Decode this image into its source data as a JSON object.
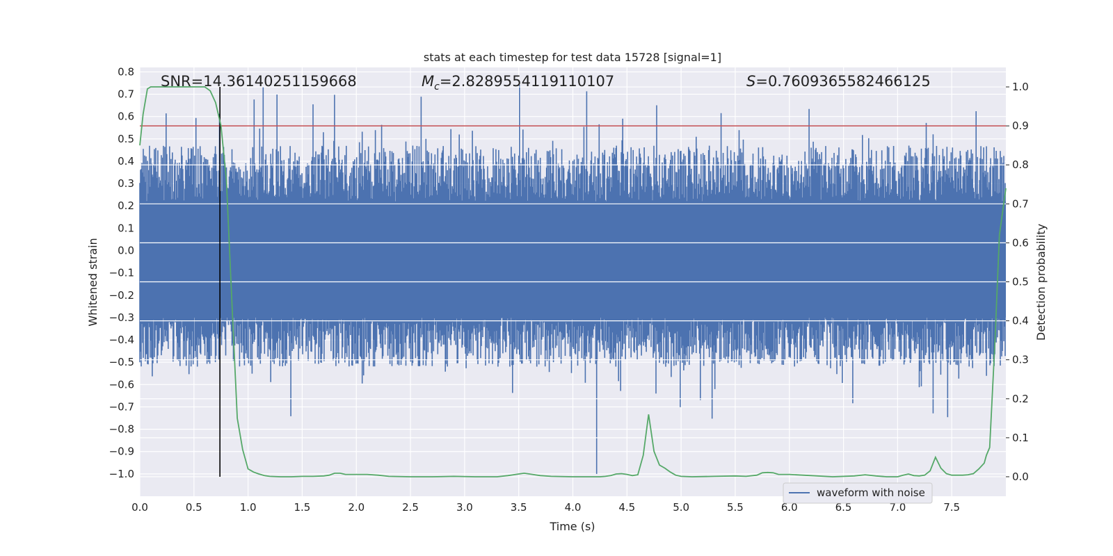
{
  "chart_data": {
    "type": "line",
    "title": "stats at each timestep for test data 15728 [signal=1]",
    "xlabel": "Time (s)",
    "ylabel_left": "Whitened strain",
    "ylabel_right": "Detection probability",
    "xlim": [
      0.0,
      8.0
    ],
    "ylim_left": [
      -1.1,
      0.82
    ],
    "ylim_right": [
      -0.05,
      1.05
    ],
    "x_ticks": [
      "0.0",
      "0.5",
      "1.0",
      "1.5",
      "2.0",
      "2.5",
      "3.0",
      "3.5",
      "4.0",
      "4.5",
      "5.0",
      "5.5",
      "6.0",
      "6.5",
      "7.0",
      "7.5"
    ],
    "x_tick_values": [
      0.0,
      0.5,
      1.0,
      1.5,
      2.0,
      2.5,
      3.0,
      3.5,
      4.0,
      4.5,
      5.0,
      5.5,
      6.0,
      6.5,
      7.0,
      7.5
    ],
    "y_left_ticks": [
      "0.8",
      "0.7",
      "0.6",
      "0.5",
      "0.4",
      "0.3",
      "0.2",
      "0.1",
      "0.0",
      "−0.1",
      "−0.2",
      "−0.3",
      "−0.4",
      "−0.5",
      "−0.6",
      "−0.7",
      "−0.8",
      "−0.9",
      "−1.0"
    ],
    "y_left_tick_values": [
      0.8,
      0.7,
      0.6,
      0.5,
      0.4,
      0.3,
      0.2,
      0.1,
      0.0,
      -0.1,
      -0.2,
      -0.3,
      -0.4,
      -0.5,
      -0.6,
      -0.7,
      -0.8,
      -0.9,
      -1.0
    ],
    "y_right_ticks": [
      "1.0",
      "0.9",
      "0.8",
      "0.7",
      "0.6",
      "0.5",
      "0.4",
      "0.3",
      "0.2",
      "0.1",
      "0.0"
    ],
    "y_right_tick_values": [
      1.0,
      0.9,
      0.8,
      0.7,
      0.6,
      0.5,
      0.4,
      0.3,
      0.2,
      0.1,
      0.0
    ],
    "annotations": {
      "snr": "SNR=14.36140251159668",
      "mc_symbol": "M",
      "mc_subscript": "c",
      "mc_value": "=2.8289554119110107",
      "s_symbol": "S",
      "s_value": "=0.7609365582466125"
    },
    "legend": [
      "waveform with noise"
    ],
    "threshold_probability": 0.9,
    "marker_time": 0.74,
    "waveform": {
      "name": "waveform with noise",
      "color": "#4c72b0",
      "duration_s": 8.0,
      "core_range": [
        -0.3,
        0.22
      ],
      "typical_peak": 0.75,
      "min_value": -1.0
    },
    "series": [
      {
        "name": "Detection probability",
        "color": "#55a868",
        "x": [
          0.0,
          0.03,
          0.07,
          0.1,
          0.2,
          0.3,
          0.4,
          0.5,
          0.6,
          0.65,
          0.7,
          0.75,
          0.8,
          0.85,
          0.9,
          0.95,
          1.0,
          1.05,
          1.1,
          1.15,
          1.2,
          1.3,
          1.4,
          1.5,
          1.6,
          1.7,
          1.75,
          1.8,
          1.85,
          1.9,
          2.0,
          2.1,
          2.2,
          2.3,
          2.5,
          2.7,
          2.9,
          3.1,
          3.3,
          3.4,
          3.5,
          3.55,
          3.6,
          3.7,
          3.8,
          4.0,
          4.2,
          4.25,
          4.3,
          4.35,
          4.4,
          4.45,
          4.5,
          4.55,
          4.6,
          4.65,
          4.7,
          4.75,
          4.8,
          4.85,
          4.9,
          4.95,
          5.0,
          5.1,
          5.3,
          5.5,
          5.6,
          5.7,
          5.75,
          5.8,
          5.85,
          5.9,
          6.0,
          6.2,
          6.4,
          6.6,
          6.7,
          6.8,
          6.9,
          7.0,
          7.05,
          7.1,
          7.15,
          7.2,
          7.25,
          7.3,
          7.35,
          7.4,
          7.45,
          7.5,
          7.55,
          7.6,
          7.65,
          7.7,
          7.75,
          7.8,
          7.82,
          7.85,
          7.9,
          7.94,
          8.0
        ],
        "values": [
          0.85,
          0.93,
          0.995,
          1.0,
          1.0,
          1.0,
          1.0,
          1.0,
          1.0,
          0.99,
          0.96,
          0.9,
          0.76,
          0.45,
          0.15,
          0.07,
          0.02,
          0.012,
          0.007,
          0.003,
          0.001,
          0.0,
          0.0,
          0.001,
          0.001,
          0.002,
          0.004,
          0.009,
          0.009,
          0.006,
          0.006,
          0.006,
          0.004,
          0.001,
          0.0,
          0.0,
          0.001,
          0.0,
          0.0,
          0.003,
          0.007,
          0.009,
          0.007,
          0.003,
          0.001,
          0.0,
          0.0,
          0.0,
          0.001,
          0.003,
          0.007,
          0.008,
          0.006,
          0.003,
          0.005,
          0.055,
          0.16,
          0.065,
          0.03,
          0.022,
          0.012,
          0.004,
          0.001,
          0.0,
          0.001,
          0.002,
          0.001,
          0.004,
          0.01,
          0.011,
          0.01,
          0.006,
          0.006,
          0.003,
          0.0,
          0.002,
          0.005,
          0.002,
          0.0,
          0.0,
          0.004,
          0.007,
          0.003,
          0.002,
          0.004,
          0.015,
          0.05,
          0.022,
          0.008,
          0.004,
          0.004,
          0.004,
          0.005,
          0.008,
          0.02,
          0.035,
          0.055,
          0.075,
          0.35,
          0.62,
          0.74
        ]
      }
    ]
  }
}
